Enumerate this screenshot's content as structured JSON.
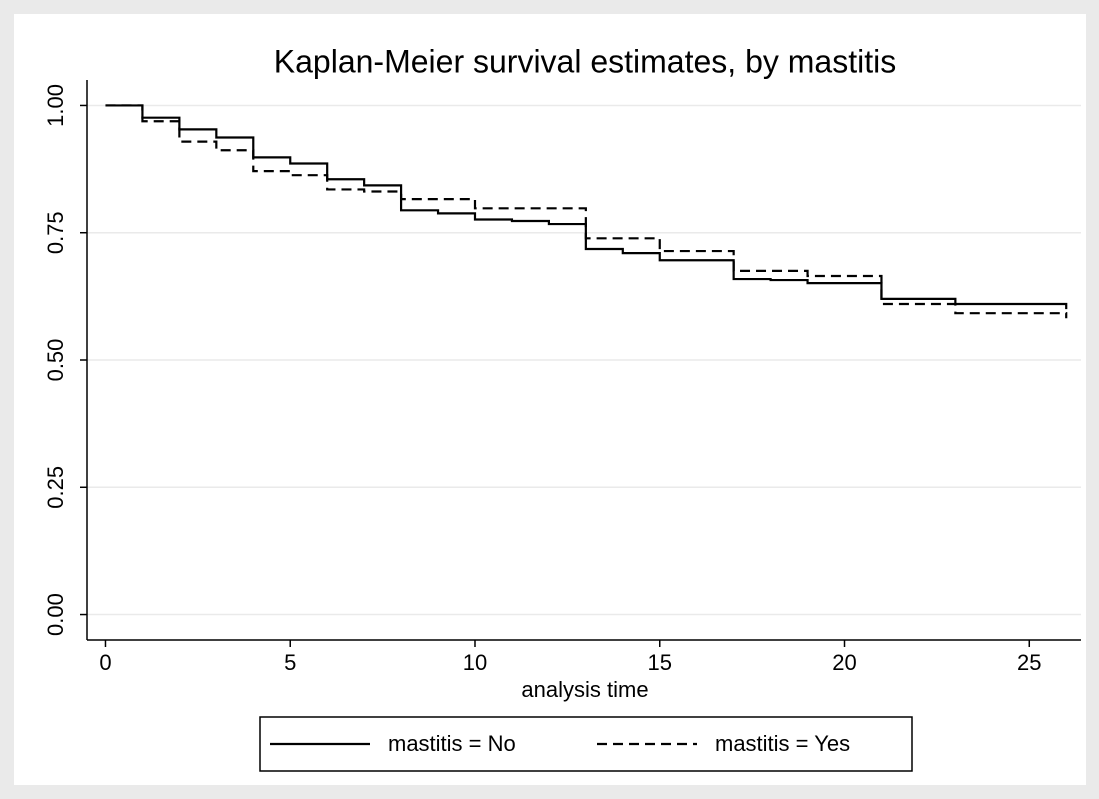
{
  "chart_data": {
    "type": "line",
    "step": "post",
    "title": "Kaplan-Meier survival estimates, by mastitis",
    "x_label": "analysis time",
    "series": [
      {
        "name": "mastitis = No",
        "color": "#000000",
        "dash": "solid",
        "x": [
          0,
          1,
          2,
          3,
          4,
          5,
          6,
          7,
          8,
          9,
          10,
          11,
          12,
          13,
          14,
          15,
          17,
          18,
          19,
          21,
          23,
          26
        ],
        "values": [
          1.0,
          0.976,
          0.953,
          0.937,
          0.898,
          0.886,
          0.855,
          0.843,
          0.794,
          0.788,
          0.776,
          0.773,
          0.767,
          0.718,
          0.71,
          0.696,
          0.659,
          0.657,
          0.651,
          0.62,
          0.61,
          0.6
        ]
      },
      {
        "name": "mastitis = Yes",
        "color": "#000000",
        "dash": "dashed",
        "x": [
          0,
          1,
          2,
          3,
          4,
          5,
          6,
          7,
          8,
          10,
          13,
          15,
          17,
          19,
          21,
          23,
          26
        ],
        "values": [
          1.0,
          0.969,
          0.929,
          0.912,
          0.871,
          0.863,
          0.835,
          0.831,
          0.816,
          0.798,
          0.739,
          0.714,
          0.675,
          0.665,
          0.61,
          0.592,
          0.582
        ]
      }
    ],
    "xlim": [
      -0.5,
      26.4
    ],
    "xticks": [
      0,
      5,
      10,
      15,
      20,
      25
    ],
    "ylim": [
      -0.05,
      1.05
    ],
    "yticks": [
      {
        "value": 0,
        "label": "0.00"
      },
      {
        "value": 0.25,
        "label": "0.25"
      },
      {
        "value": 0.5,
        "label": "0.50"
      },
      {
        "value": 0.75,
        "label": "0.75"
      },
      {
        "value": 1,
        "label": "1.00"
      }
    ],
    "grid": true,
    "legend": "bottom"
  }
}
